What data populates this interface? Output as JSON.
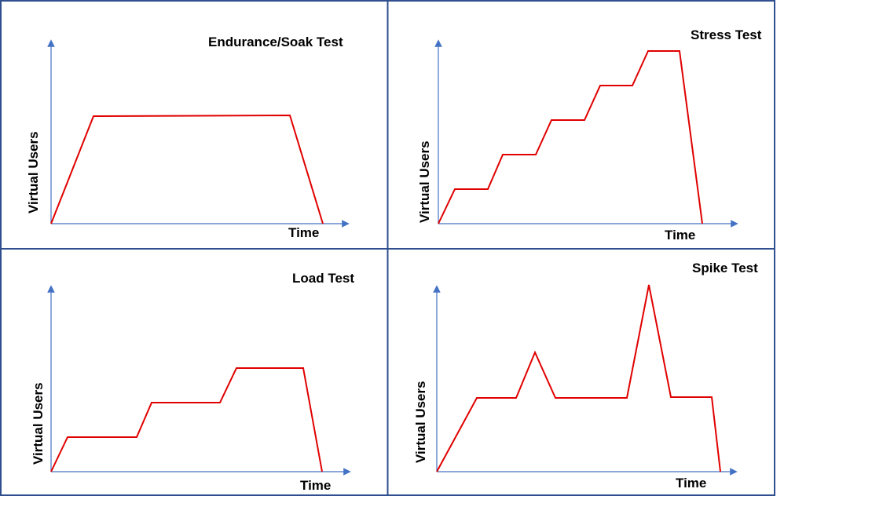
{
  "colors": {
    "border": "#2F4F8F",
    "axis": "#4472C4",
    "line": "#E00000",
    "text": "#000000"
  },
  "panels": [
    {
      "title": "Endurance/Soak Test",
      "xlabel": "Time",
      "ylabel": "Virtual Users"
    },
    {
      "title": "Stress Test",
      "xlabel": "Time",
      "ylabel": "Virtual Users"
    },
    {
      "title": "Load Test",
      "xlabel": "Time",
      "ylabel": "Virtual Users"
    },
    {
      "title": "Spike Test",
      "xlabel": "Time",
      "ylabel": "Virtual Users"
    }
  ]
}
